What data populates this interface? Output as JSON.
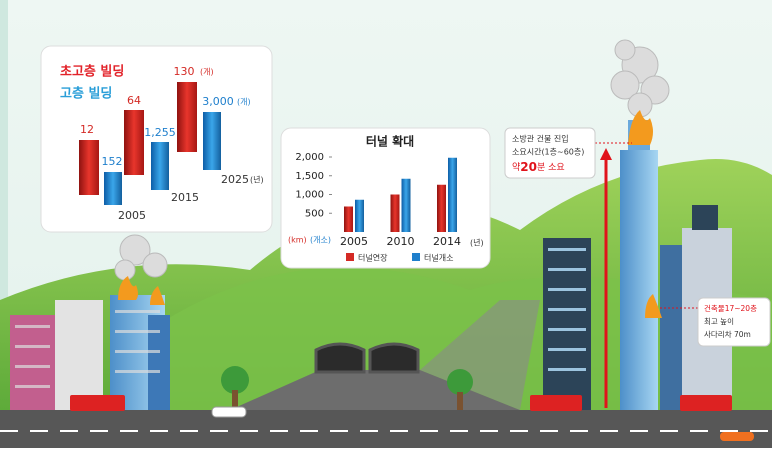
{
  "high_rise_panel": {
    "legend": {
      "super_high": "초고층 빌딩",
      "high": "고층 빌딩"
    },
    "super_high_labels": [
      "12",
      "64",
      "130"
    ],
    "high_labels": [
      "152",
      "1,255",
      "3,000"
    ],
    "unit": "(개)",
    "years": [
      "2005",
      "2015",
      "2025"
    ],
    "year_unit": "(년)"
  },
  "tunnel_chart": {
    "type": "bar",
    "title": "터널 확대",
    "categories": [
      "2005",
      "2010",
      "2014"
    ],
    "x_unit": "(년)",
    "y_unit_left": "(km)",
    "y_unit_right": "(개소)",
    "ylim": [
      0,
      2000
    ],
    "yticks": [
      {
        "value": 500,
        "label": "500"
      },
      {
        "value": 1000,
        "label": "1,000"
      },
      {
        "value": 1500,
        "label": "1,500"
      },
      {
        "value": 2000,
        "label": "2,000"
      }
    ],
    "series": [
      {
        "name": "터널연장",
        "color": "#d42a25",
        "values": [
          680,
          1000,
          1260
        ]
      },
      {
        "name": "터널개소",
        "color": "#1f7fcc",
        "values": [
          860,
          1420,
          1980
        ]
      }
    ]
  },
  "fire_callout": {
    "lines": [
      "소방관 건물 진입",
      "소요시간(1층~60층)"
    ],
    "time_prefix": "약",
    "time_value": "20",
    "time_suffix": "분 소요"
  },
  "ladder_callout": {
    "lines": [
      "건축물17~20층",
      "최고 높이",
      "사다리차 70m"
    ]
  }
}
